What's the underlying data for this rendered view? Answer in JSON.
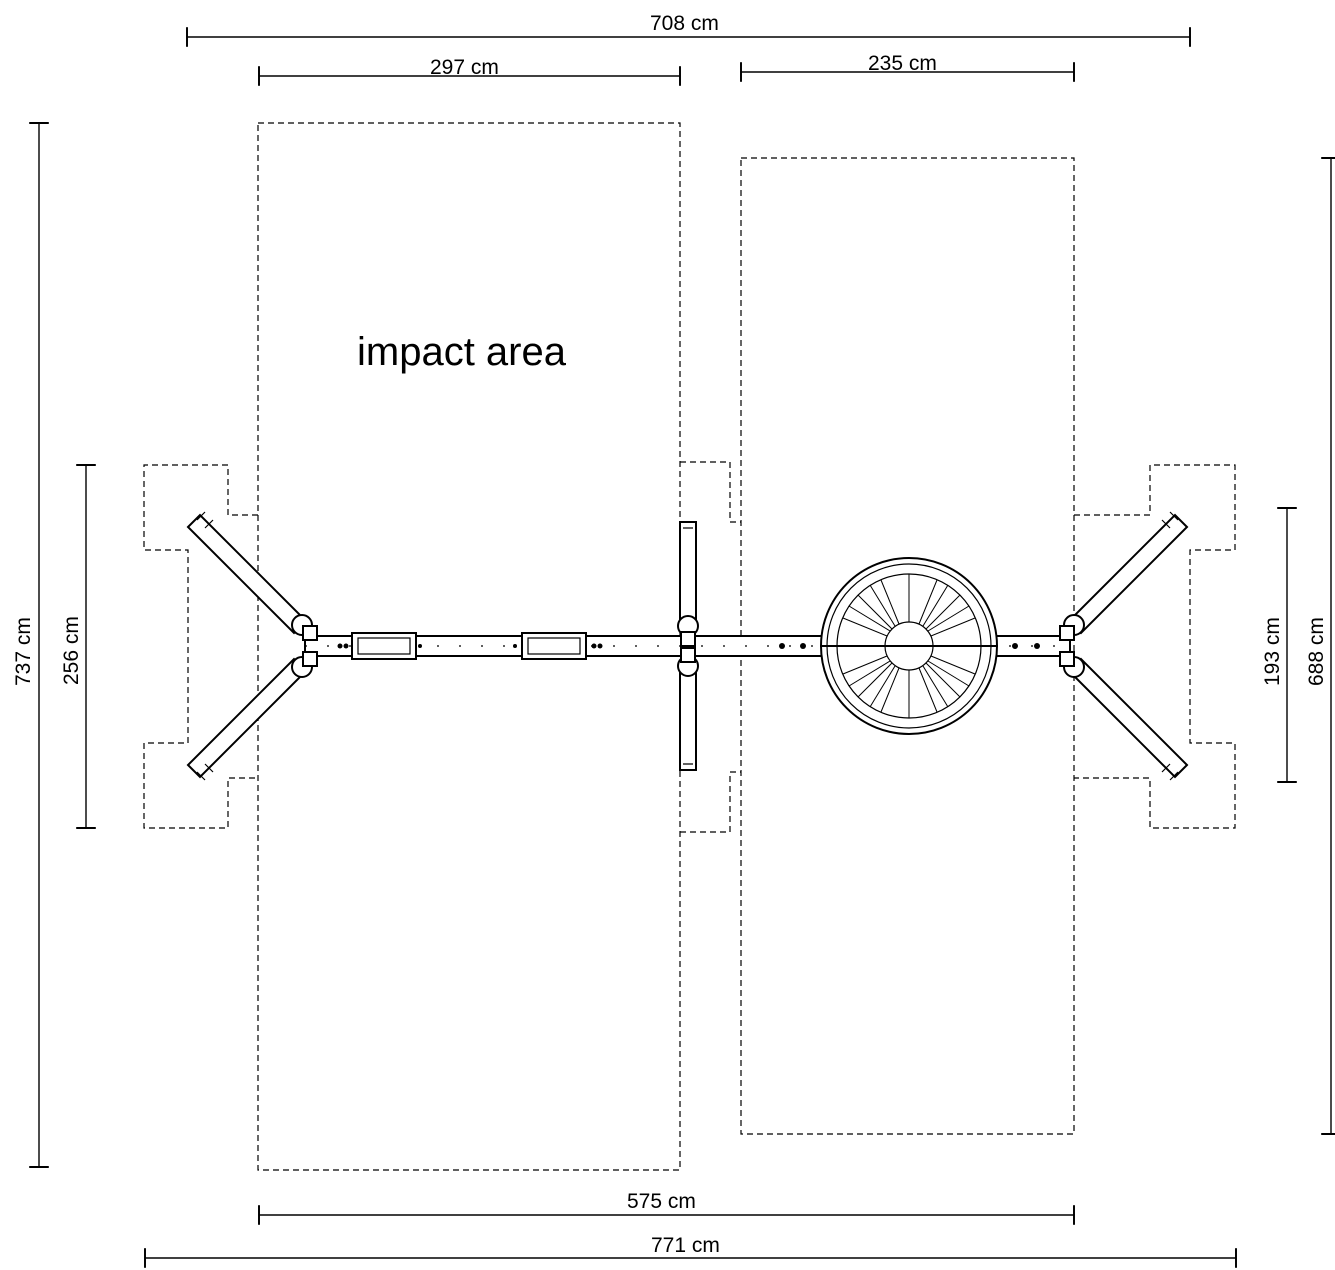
{
  "dimensions": {
    "top_total": "708 cm",
    "top_left": "297 cm",
    "top_right": "235 cm",
    "bottom_inner": "575 cm",
    "bottom_total": "771 cm",
    "left_outer": "737 cm",
    "left_inner": "256 cm",
    "right_inner": "193 cm",
    "right_outer": "688 cm"
  },
  "labels": {
    "impact_area": "impact area"
  }
}
